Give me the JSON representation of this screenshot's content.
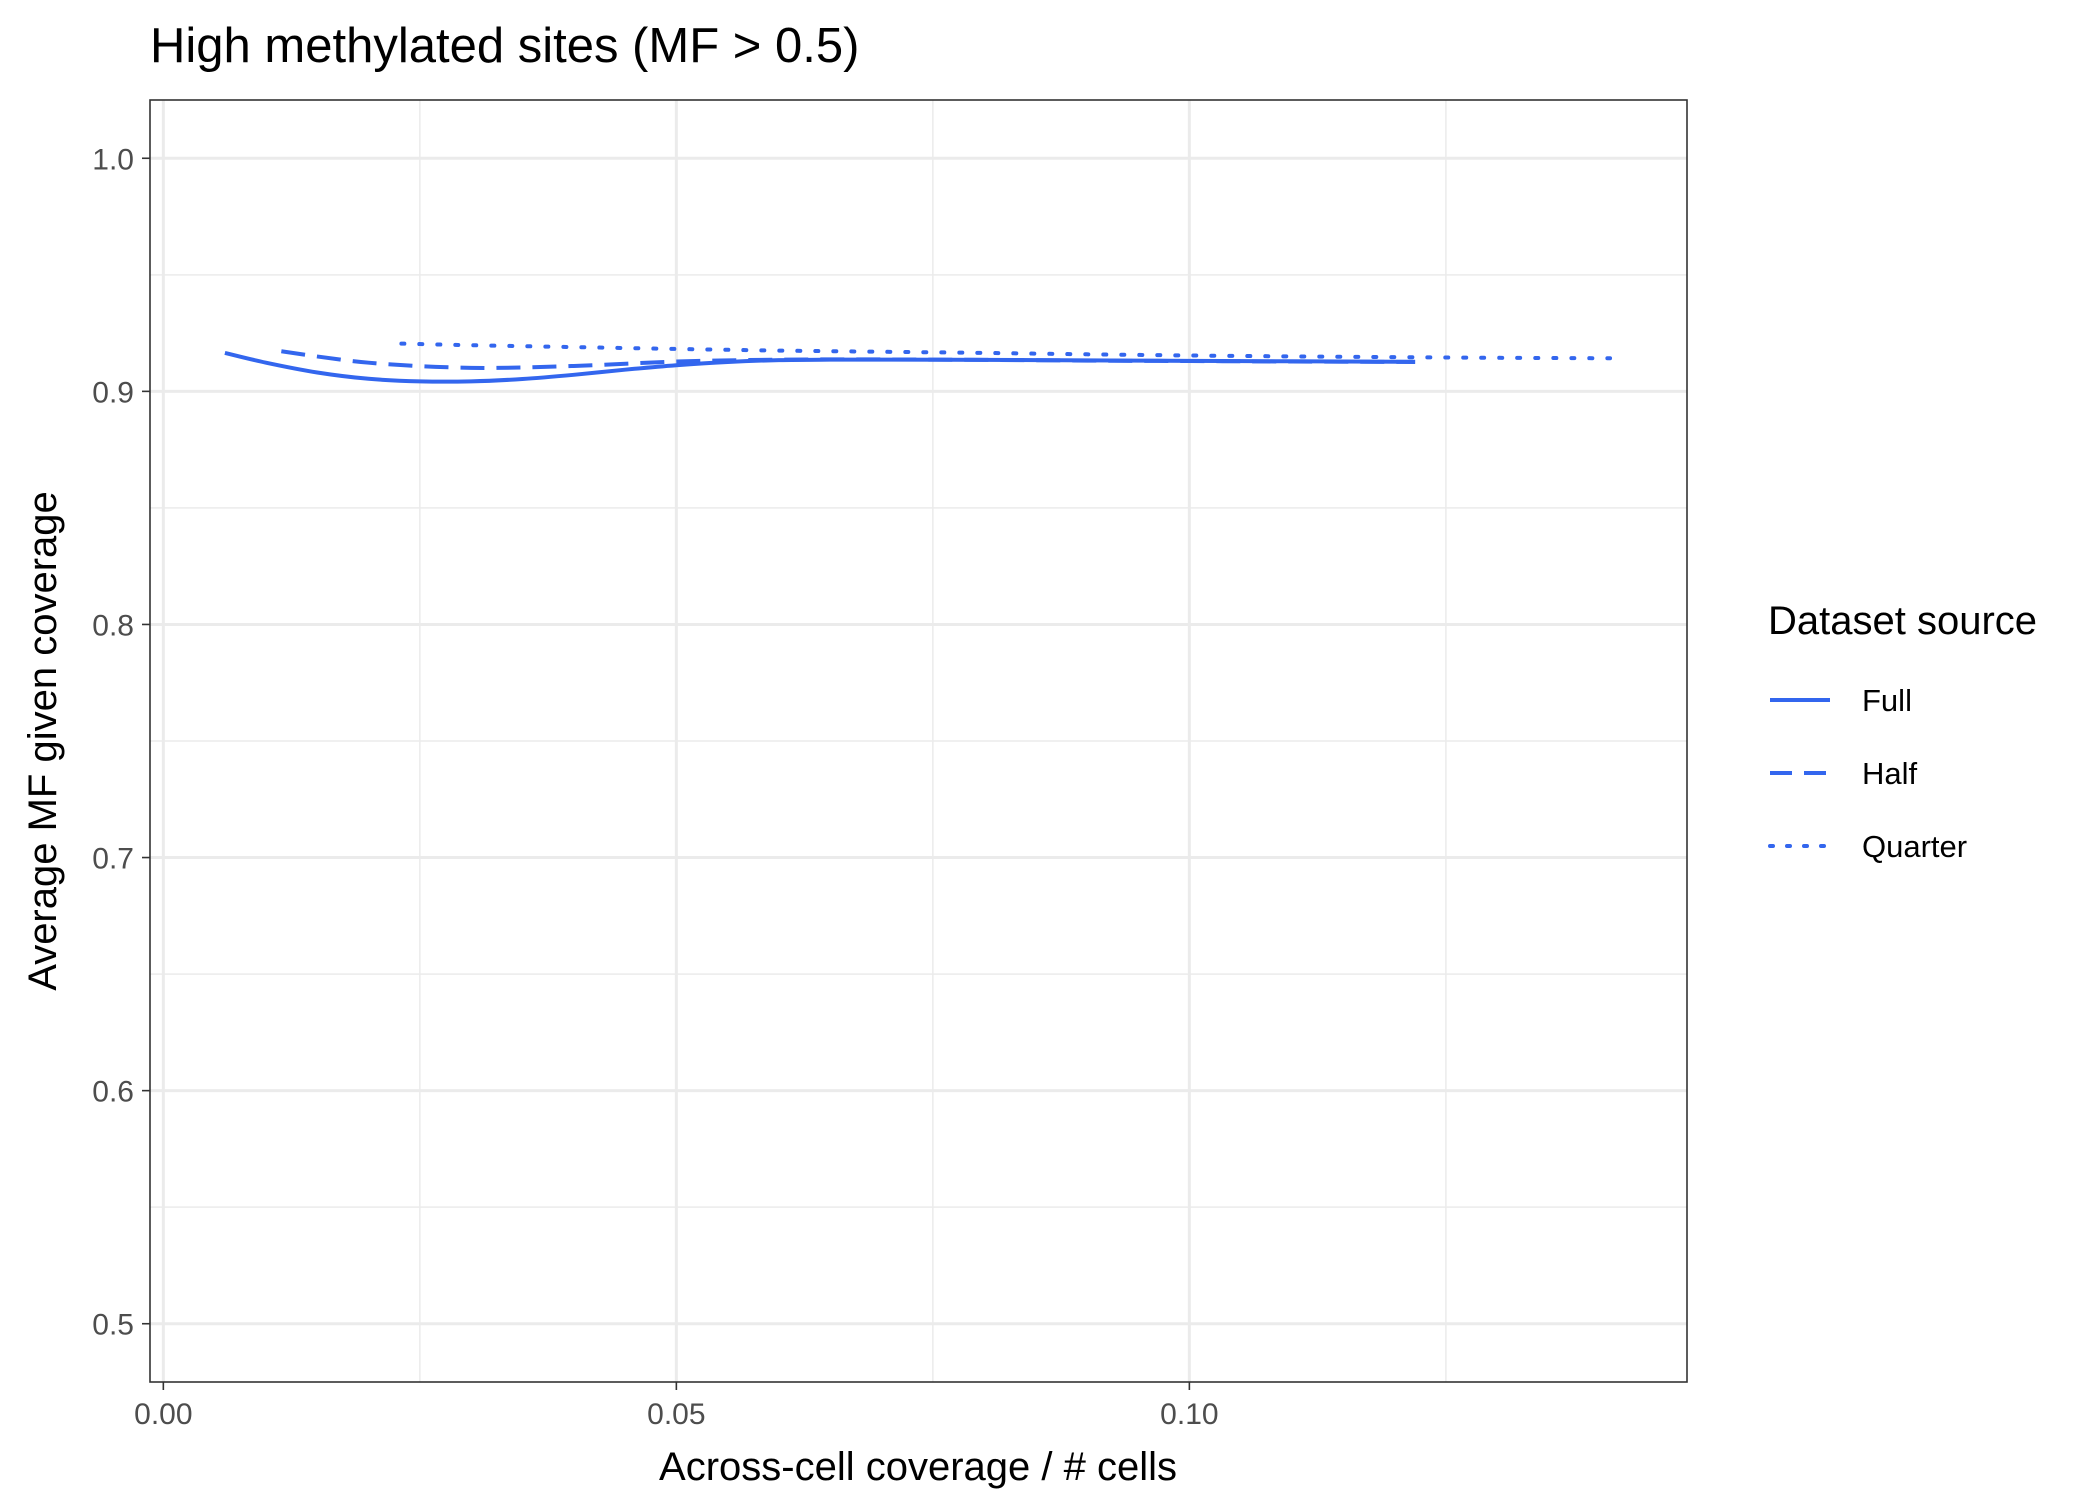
{
  "chart_data": {
    "type": "line",
    "title": "High methylated sites (MF > 0.5)",
    "xlabel": "Across-cell coverage / # cells",
    "ylabel": "Average MF given coverage",
    "xlim": [
      -0.0013,
      0.1485
    ],
    "ylim": [
      0.475,
      1.025
    ],
    "x_ticks": [
      0.0,
      0.05,
      0.1
    ],
    "x_tick_labels": [
      "0.00",
      "0.05",
      "0.10"
    ],
    "x_minor_ticks": [
      0.025,
      0.075,
      0.125
    ],
    "y_ticks": [
      0.5,
      0.6,
      0.7,
      0.8,
      0.9,
      1.0
    ],
    "y_tick_labels": [
      "0.5",
      "0.6",
      "0.7",
      "0.8",
      "0.9",
      "1.0"
    ],
    "y_minor_ticks": [
      0.55,
      0.65,
      0.75,
      0.85,
      0.95
    ],
    "grid": true,
    "legend": {
      "title": "Dataset source",
      "position": "right"
    },
    "color": "#3366ee",
    "series": [
      {
        "name": "Full",
        "linestyle": "solid",
        "x": [
          0.006,
          0.01,
          0.015,
          0.02,
          0.025,
          0.03,
          0.035,
          0.04,
          0.045,
          0.05,
          0.055,
          0.06,
          0.065,
          0.07,
          0.08,
          0.09,
          0.1,
          0.11,
          0.122
        ],
        "y": [
          0.9165,
          0.9123,
          0.9081,
          0.9054,
          0.9043,
          0.9043,
          0.9053,
          0.9071,
          0.9093,
          0.9112,
          0.9126,
          0.9134,
          0.9136,
          0.9136,
          0.9135,
          0.9133,
          0.9131,
          0.9129,
          0.9127
        ]
      },
      {
        "name": "Half",
        "linestyle": "dashed",
        "x": [
          0.0115,
          0.02,
          0.03,
          0.04,
          0.05,
          0.06,
          0.07,
          0.08,
          0.09,
          0.1,
          0.11,
          0.122
        ],
        "y": [
          0.9172,
          0.9123,
          0.9101,
          0.9109,
          0.9128,
          0.9136,
          0.9137,
          0.9135,
          0.9132,
          0.913,
          0.9128,
          0.9126
        ]
      },
      {
        "name": "Quarter",
        "linestyle": "dotted",
        "x": [
          0.0232,
          0.03,
          0.04,
          0.05,
          0.06,
          0.07,
          0.08,
          0.09,
          0.1,
          0.11,
          0.12,
          0.13,
          0.141
        ],
        "y": [
          0.9205,
          0.9198,
          0.919,
          0.9182,
          0.9175,
          0.917,
          0.9165,
          0.9159,
          0.9154,
          0.915,
          0.9147,
          0.9144,
          0.9142
        ]
      }
    ]
  }
}
